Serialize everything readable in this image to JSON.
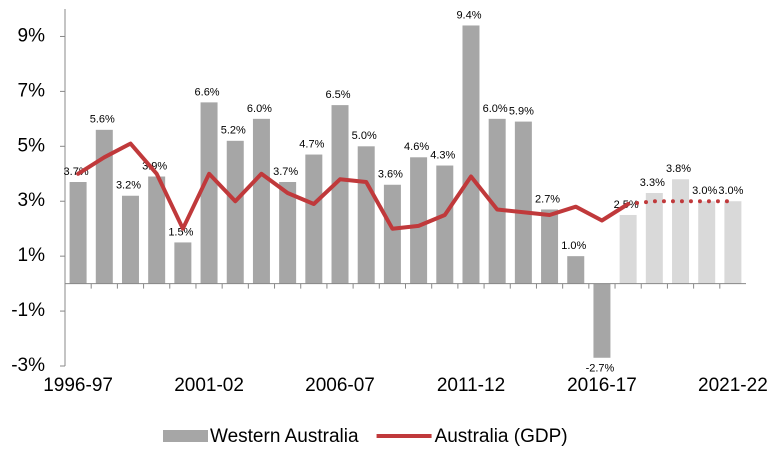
{
  "chart_data": {
    "type": "bar-line",
    "categories": [
      "1996-97",
      null,
      null,
      null,
      null,
      "2001-02",
      null,
      null,
      null,
      null,
      "2006-07",
      null,
      null,
      null,
      null,
      "2011-12",
      null,
      null,
      null,
      null,
      "2016-17",
      null,
      null,
      null,
      null,
      "2021-22"
    ],
    "series": [
      {
        "name": "Western Australia",
        "type": "bar",
        "color": "#a6a6a6",
        "colors": [
          "#a6a6a6",
          "#a6a6a6",
          "#a6a6a6",
          "#a6a6a6",
          "#a6a6a6",
          "#a6a6a6",
          "#a6a6a6",
          "#a6a6a6",
          "#a6a6a6",
          "#a6a6a6",
          "#a6a6a6",
          "#a6a6a6",
          "#a6a6a6",
          "#a6a6a6",
          "#a6a6a6",
          "#a6a6a6",
          "#a6a6a6",
          "#a6a6a6",
          "#a6a6a6",
          "#a6a6a6",
          "#a6a6a6",
          "#d9d9d9",
          "#d9d9d9",
          "#d9d9d9",
          "#d9d9d9",
          "#d9d9d9"
        ],
        "values": [
          3.7,
          5.6,
          3.2,
          3.9,
          1.5,
          6.6,
          5.2,
          6.0,
          3.7,
          4.7,
          6.5,
          5.0,
          3.6,
          4.6,
          4.3,
          9.4,
          6.0,
          5.9,
          2.7,
          1.0,
          -2.7,
          2.5,
          3.3,
          3.8,
          3.0,
          3.0
        ],
        "value_labels": [
          "3.7%",
          "5.6%",
          "3.2%",
          "3.9%",
          "1.5%",
          "6.6%",
          "5.2%",
          "6.0%",
          "3.7%",
          "4.7%",
          "6.5%",
          "5.0%",
          "3.6%",
          "4.6%",
          "4.3%",
          "9.4%",
          "6.0%",
          "5.9%",
          "2.7%",
          "1.0%",
          "-2.7%",
          "2.5%",
          "3.3%",
          "3.8%",
          "3.0%",
          "3.0%"
        ]
      },
      {
        "name": "Australia (GDP)",
        "type": "line",
        "color": "#c0393b",
        "values": [
          4.0,
          4.6,
          5.1,
          4.0,
          2.0,
          4.0,
          3.0,
          4.0,
          3.3,
          2.9,
          3.8,
          3.7,
          2.0,
          2.1,
          2.5,
          3.9,
          2.7,
          2.6,
          2.5,
          2.8,
          2.3,
          2.9,
          null,
          null,
          null,
          null
        ]
      },
      {
        "type": "line",
        "color": "#c0393b",
        "dotted": true,
        "values": [
          null,
          null,
          null,
          null,
          null,
          null,
          null,
          null,
          null,
          null,
          null,
          null,
          null,
          null,
          null,
          null,
          null,
          null,
          null,
          null,
          null,
          2.9,
          3.0,
          3.0,
          3.0,
          3.0
        ]
      }
    ],
    "ylim": [
      -3,
      10
    ],
    "yticks": [
      {
        "value": -3,
        "label": "-3%"
      },
      {
        "value": -1,
        "label": "-1%"
      },
      {
        "value": 1,
        "label": "1%"
      },
      {
        "value": 3,
        "label": "3%"
      },
      {
        "value": 5,
        "label": "5%"
      },
      {
        "value": 7,
        "label": "7%"
      },
      {
        "value": 9,
        "label": "9%"
      }
    ],
    "legend": "bottom"
  }
}
